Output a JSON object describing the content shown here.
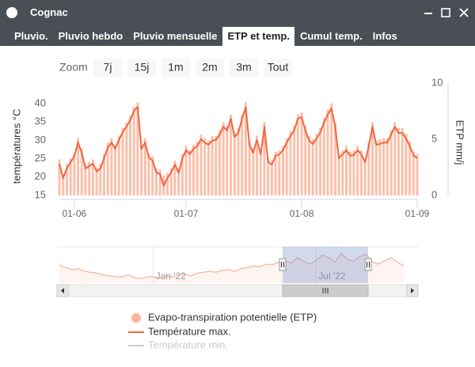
{
  "window": {
    "title": "Cognac"
  },
  "tabs": [
    "Pluvio.",
    "Pluvio hebdo",
    "Pluvio mensuelle",
    "ETP et temp.",
    "Cumul temp.",
    "Infos"
  ],
  "active_tab": 3,
  "zoom": {
    "label": "Zoom",
    "buttons": [
      "7j",
      "15j",
      "1m",
      "2m",
      "3m",
      "Tout"
    ]
  },
  "chart_data": {
    "type": "combo",
    "y_label": "températures °C",
    "y2_label": "ETP mm/j",
    "x": [
      "28-05",
      "29-05",
      "30-05",
      "31-05",
      "01-06",
      "02-06",
      "03-06",
      "04-06",
      "05-06",
      "06-06",
      "07-06",
      "08-06",
      "09-06",
      "10-06",
      "11-06",
      "12-06",
      "13-06",
      "14-06",
      "15-06",
      "16-06",
      "17-06",
      "18-06",
      "19-06",
      "20-06",
      "21-06",
      "22-06",
      "23-06",
      "24-06",
      "25-06",
      "26-06",
      "27-06",
      "28-06",
      "29-06",
      "30-06",
      "01-07",
      "02-07",
      "03-07",
      "04-07",
      "05-07",
      "06-07",
      "07-07",
      "08-07",
      "09-07",
      "10-07",
      "11-07",
      "12-07",
      "13-07",
      "14-07",
      "15-07",
      "16-07",
      "17-07",
      "18-07",
      "19-07",
      "20-07",
      "21-07",
      "22-07",
      "23-07",
      "24-07",
      "25-07",
      "26-07",
      "27-07",
      "28-07",
      "29-07",
      "30-07",
      "31-07",
      "01-08",
      "02-08",
      "03-08",
      "04-08",
      "05-08",
      "06-08",
      "07-08",
      "08-08",
      "09-08",
      "10-08",
      "11-08",
      "12-08",
      "13-08",
      "14-08",
      "15-08",
      "16-08",
      "17-08",
      "18-08",
      "19-08",
      "20-08",
      "21-08",
      "22-08",
      "23-08",
      "24-08",
      "25-08",
      "26-08",
      "27-08",
      "28-08",
      "29-08",
      "30-08",
      "31-08",
      "01-09"
    ],
    "xlim": [
      "28-05",
      "01-09"
    ],
    "xticks": [
      "01-06",
      "01-07",
      "01-08",
      "01-09"
    ],
    "ylim": [
      15,
      45.6
    ],
    "yticks": [
      15,
      20,
      25,
      30,
      35,
      40
    ],
    "y2lim": [
      0,
      10
    ],
    "y2ticks": [
      0,
      5,
      10
    ],
    "series": [
      {
        "name": "Evapo-transpiration potentielle (ETP)",
        "type": "bar",
        "axis": "y2",
        "color": "#fbb49b",
        "values": [
          3.2,
          1.9,
          2.8,
          3.3,
          3.8,
          5.1,
          4.2,
          2.8,
          3.0,
          3.2,
          2.5,
          2.8,
          3.7,
          4.7,
          5.1,
          4.5,
          5.3,
          6.0,
          6.5,
          7.1,
          7.9,
          8.3,
          4.5,
          5.1,
          3.7,
          3.5,
          2.4,
          2.3,
          1.8,
          2.0,
          2.4,
          3.1,
          2.4,
          3.7,
          4.4,
          4.0,
          4.5,
          4.8,
          5.4,
          5.1,
          4.9,
          5.3,
          5.3,
          5.8,
          6.5,
          6.2,
          7.2,
          5.6,
          6.0,
          7.2,
          8.3,
          4.9,
          4.2,
          5.3,
          4.0,
          6.5,
          3.3,
          3.1,
          3.9,
          4.0,
          4.4,
          5.1,
          5.7,
          6.2,
          7.2,
          7.4,
          6.2,
          5.3,
          5.0,
          5.5,
          6.0,
          6.9,
          7.6,
          8.2,
          6.5,
          3.7,
          4.0,
          4.4,
          3.9,
          4.0,
          4.4,
          4.0,
          3.3,
          4.8,
          6.5,
          4.9,
          5.0,
          5.1,
          5.1,
          5.8,
          6.5,
          6.0,
          6.0,
          5.5,
          4.8,
          3.9,
          3.7
        ]
      },
      {
        "name": "Température max.",
        "type": "line",
        "color": "#f2663f",
        "values": [
          23.6,
          19.7,
          22.3,
          24.0,
          25.6,
          29.4,
          26.6,
          22.3,
          23.0,
          23.6,
          21.5,
          22.3,
          25.1,
          28.1,
          29.4,
          27.7,
          30.1,
          32.2,
          33.7,
          35.5,
          38.0,
          39.1,
          27.7,
          29.4,
          25.3,
          24.5,
          21.3,
          20.8,
          17.6,
          19.7,
          21.3,
          23.4,
          21.1,
          25.1,
          27.3,
          26.2,
          27.7,
          28.4,
          30.3,
          29.4,
          28.8,
          29.9,
          30.1,
          31.6,
          33.7,
          32.7,
          35.9,
          30.9,
          32.0,
          35.9,
          38.9,
          28.8,
          26.6,
          30.1,
          26.2,
          33.7,
          24.0,
          23.4,
          25.8,
          26.2,
          27.3,
          29.4,
          31.2,
          32.7,
          35.9,
          36.3,
          32.7,
          29.9,
          29.0,
          30.5,
          32.2,
          34.8,
          37.0,
          38.7,
          33.7,
          25.1,
          26.2,
          27.3,
          25.8,
          26.0,
          27.3,
          26.2,
          24.0,
          28.4,
          33.7,
          28.8,
          29.0,
          29.4,
          29.4,
          31.6,
          33.7,
          32.0,
          32.0,
          30.5,
          28.4,
          26.0,
          25.1
        ]
      },
      {
        "name": "Température min.",
        "type": "line",
        "color": "#cccccc",
        "visible": false
      }
    ],
    "navigator": {
      "color": "#f7a58c",
      "ylim": [
        5,
        45
      ],
      "categories": [
        null,
        null,
        null,
        null,
        null,
        null,
        null,
        null,
        null,
        null,
        null,
        null,
        null,
        null,
        null,
        "Jan '22",
        null,
        null,
        null,
        null,
        null,
        null,
        null,
        null,
        null,
        null,
        null,
        null,
        null,
        null,
        null,
        null,
        null,
        null,
        null,
        null,
        null,
        null,
        null,
        null,
        null,
        "Jul '22",
        null,
        null,
        null,
        null,
        null,
        null,
        null,
        null,
        null,
        null,
        null,
        null,
        null,
        null
      ],
      "values": [
        25,
        22,
        20,
        21,
        18,
        17,
        16,
        14,
        13,
        12,
        12,
        14,
        11,
        10,
        12,
        12,
        11,
        13,
        12,
        14,
        15,
        13,
        16,
        17,
        18,
        17,
        19,
        20,
        18,
        21,
        22,
        24,
        23,
        26,
        25,
        28,
        30,
        27,
        33,
        29,
        26,
        30,
        36,
        33,
        28,
        38,
        31,
        29,
        34,
        37,
        28,
        26,
        30,
        33,
        28,
        24
      ]
    }
  }
}
